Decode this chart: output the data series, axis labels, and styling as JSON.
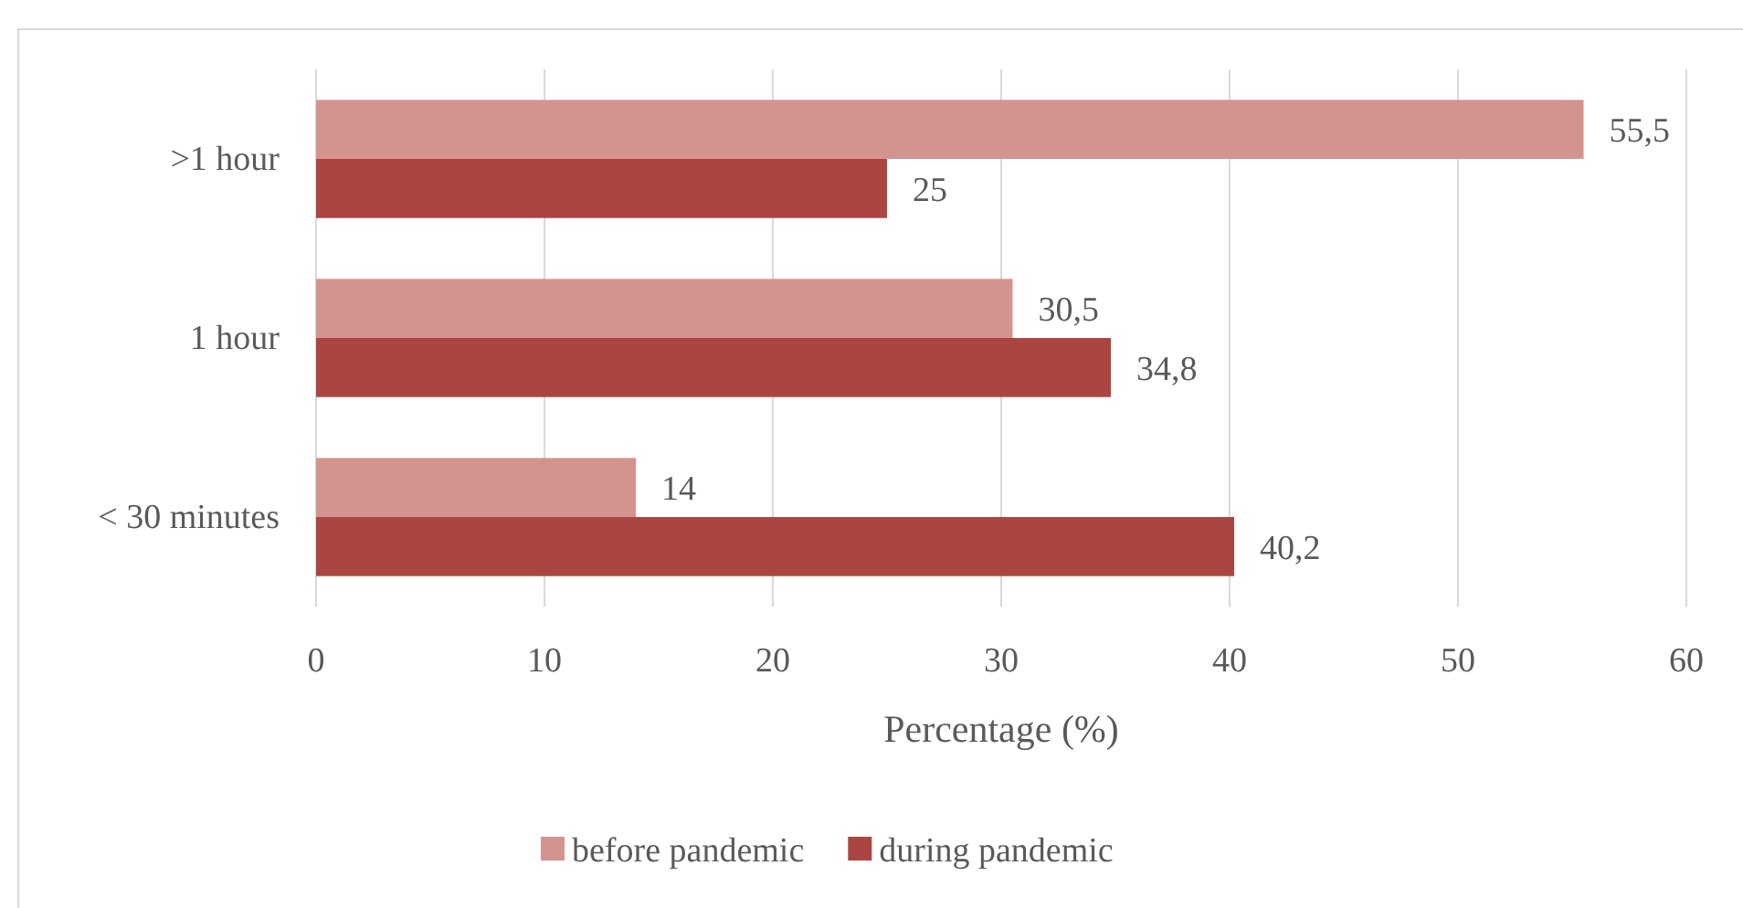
{
  "chart_data": {
    "type": "bar",
    "orientation": "horizontal",
    "categories": [
      ">1 hour",
      "1 hour",
      "< 30 minutes"
    ],
    "series": [
      {
        "name": "before pandemic",
        "color": "#d39490",
        "values": [
          55.5,
          30.5,
          14
        ],
        "value_labels": [
          "55,5",
          "30,5",
          "14"
        ]
      },
      {
        "name": "during pandemic",
        "color": "#ab4542",
        "values": [
          25,
          34.8,
          40.2
        ],
        "value_labels": [
          "25",
          "34,8",
          "40,2"
        ]
      }
    ],
    "xlim": [
      0,
      60
    ],
    "xticks": [
      0,
      10,
      20,
      30,
      40,
      50,
      60
    ],
    "xlabel": "Percentage (%)",
    "grid": "x",
    "legend": "bottom"
  }
}
